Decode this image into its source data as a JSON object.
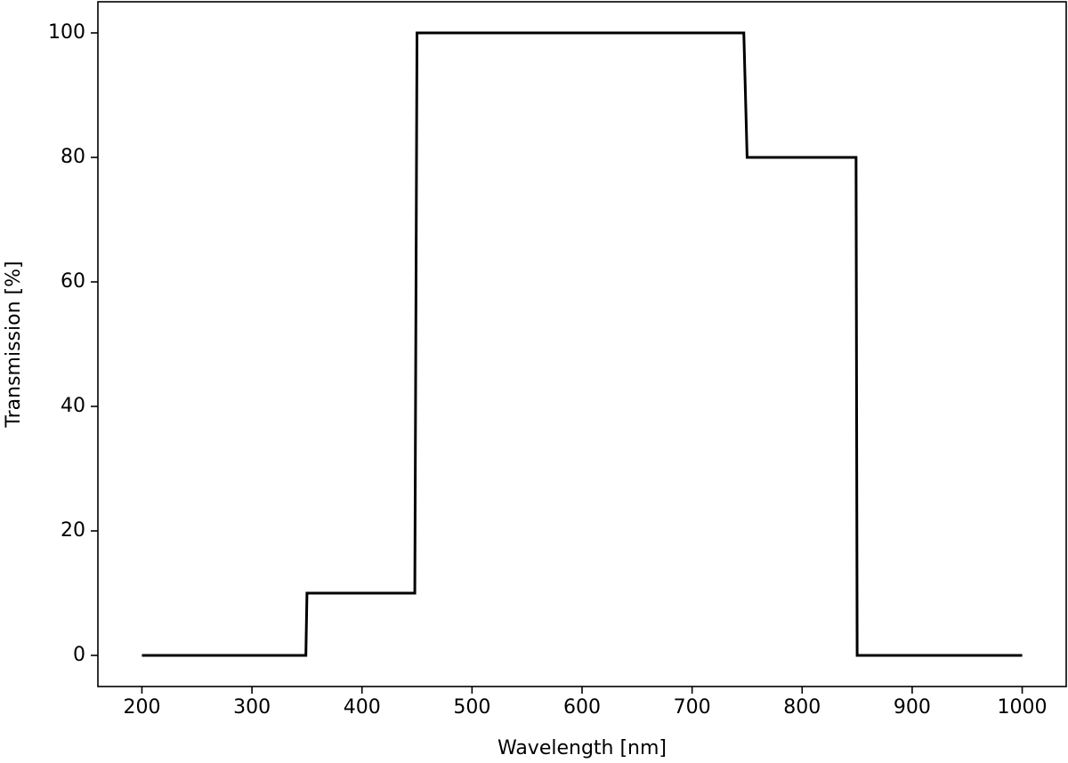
{
  "chart_data": {
    "type": "line",
    "x_label": "Wavelength [nm]",
    "y_label": "Transmission [%]",
    "x": [
      200,
      349,
      350,
      448,
      450,
      747,
      750,
      849,
      850,
      1000
    ],
    "series": [
      {
        "color": "#000000",
        "values": [
          0,
          0,
          10,
          10,
          100,
          100,
          80,
          80,
          0,
          0
        ]
      }
    ],
    "xlim": [
      160,
      1040
    ],
    "ylim": [
      -5,
      105
    ],
    "xticks": [
      200,
      300,
      400,
      500,
      600,
      700,
      800,
      900,
      1000
    ],
    "yticks": [
      0,
      20,
      40,
      60,
      80,
      100
    ]
  }
}
